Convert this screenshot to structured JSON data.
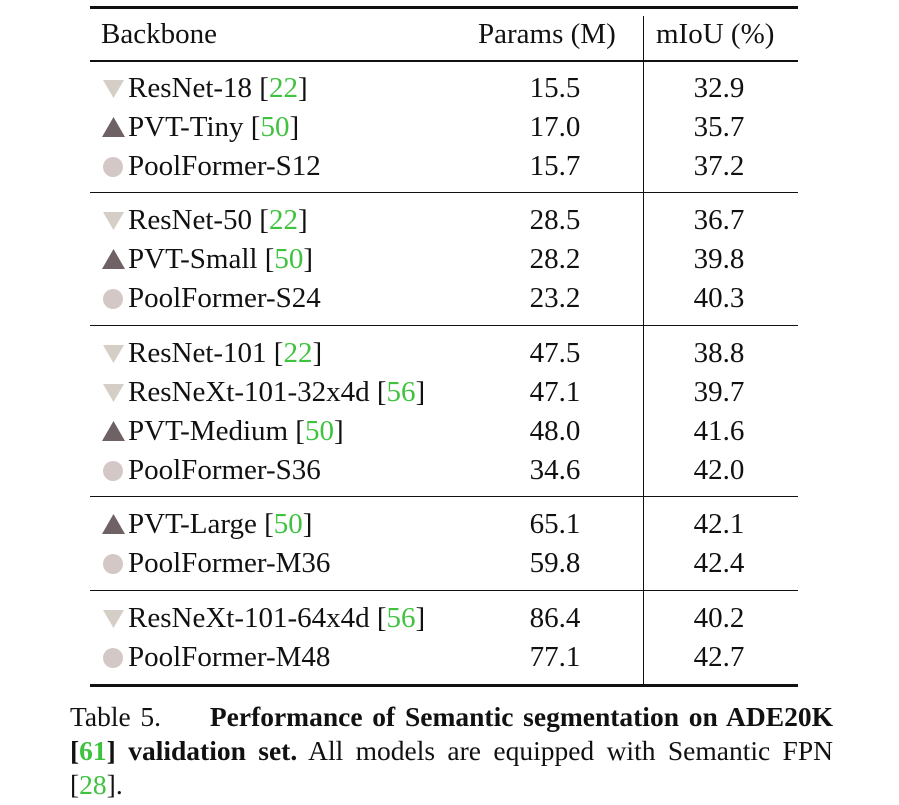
{
  "table": {
    "headers": {
      "backbone": "Backbone",
      "params": "Params (M)",
      "miou": "mIoU (%)"
    },
    "groups": [
      {
        "rows": [
          {
            "marker": "down-triangle-icon",
            "name": "ResNet-18 [",
            "cite": "22",
            "close": "]",
            "params": "15.5",
            "miou": "32.9"
          },
          {
            "marker": "up-triangle-icon",
            "name": "PVT-Tiny [",
            "cite": "50",
            "close": "]",
            "params": "17.0",
            "miou": "35.7"
          },
          {
            "marker": "circle-icon",
            "name": "PoolFormer-S12",
            "cite": "",
            "close": "",
            "params": "15.7",
            "miou": "37.2"
          }
        ]
      },
      {
        "rows": [
          {
            "marker": "down-triangle-icon",
            "name": "ResNet-50 [",
            "cite": "22",
            "close": "]",
            "params": "28.5",
            "miou": "36.7"
          },
          {
            "marker": "up-triangle-icon",
            "name": "PVT-Small [",
            "cite": "50",
            "close": "]",
            "params": "28.2",
            "miou": "39.8"
          },
          {
            "marker": "circle-icon",
            "name": "PoolFormer-S24",
            "cite": "",
            "close": "",
            "params": "23.2",
            "miou": "40.3"
          }
        ]
      },
      {
        "rows": [
          {
            "marker": "down-triangle-icon",
            "name": "ResNet-101 [",
            "cite": "22",
            "close": "]",
            "params": "47.5",
            "miou": "38.8"
          },
          {
            "marker": "down-triangle-icon",
            "name": "ResNeXt-101-32x4d [",
            "cite": "56",
            "close": "]",
            "params": "47.1",
            "miou": "39.7"
          },
          {
            "marker": "up-triangle-icon",
            "name": "PVT-Medium [",
            "cite": "50",
            "close": "]",
            "params": "48.0",
            "miou": "41.6"
          },
          {
            "marker": "circle-icon",
            "name": "PoolFormer-S36",
            "cite": "",
            "close": "",
            "params": "34.6",
            "miou": "42.0"
          }
        ]
      },
      {
        "rows": [
          {
            "marker": "up-triangle-icon",
            "name": "PVT-Large [",
            "cite": "50",
            "close": "]",
            "params": "65.1",
            "miou": "42.1"
          },
          {
            "marker": "circle-icon",
            "name": "PoolFormer-M36",
            "cite": "",
            "close": "",
            "params": "59.8",
            "miou": "42.4"
          }
        ]
      },
      {
        "rows": [
          {
            "marker": "down-triangle-icon",
            "name": "ResNeXt-101-64x4d [",
            "cite": "56",
            "close": "]",
            "params": "86.4",
            "miou": "40.2"
          },
          {
            "marker": "circle-icon",
            "name": "PoolFormer-M48",
            "cite": "",
            "close": "",
            "params": "77.1",
            "miou": "42.7"
          }
        ]
      }
    ]
  },
  "caption": {
    "label": "Table 5.",
    "bold_a": "Performance of Semantic segmentation on ADE20K [",
    "bold_cite": "61",
    "bold_b": "] validation set.",
    "text": " All models are equipped with Semantic FPN [",
    "cite": "28",
    "end": "]."
  },
  "colors": {
    "citation": "#3fc33f",
    "down_triangle": "#d4cec6",
    "up_triangle": "#6e6264",
    "circle": "#d3c8c6"
  }
}
